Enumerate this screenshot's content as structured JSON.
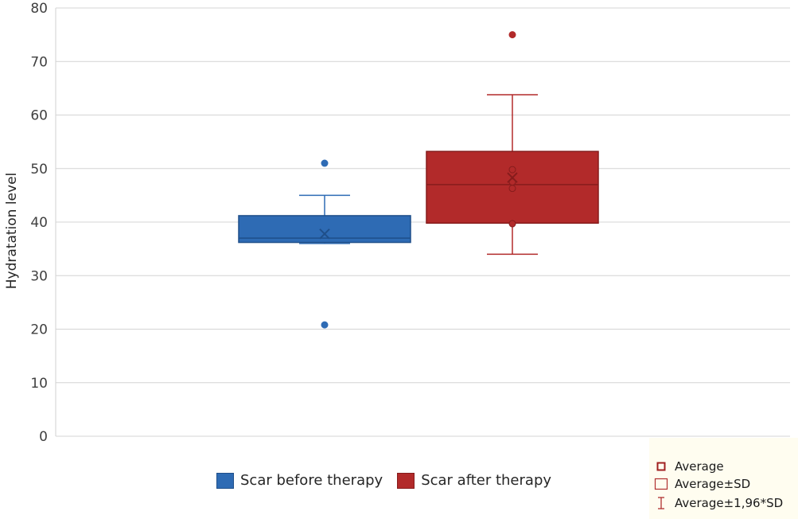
{
  "chart_data": {
    "type": "box",
    "ylabel": "Hydratation level",
    "xlabel": "",
    "ylim": [
      0,
      80
    ],
    "yticks": [
      0,
      10,
      20,
      30,
      40,
      50,
      60,
      70,
      80
    ],
    "grid": true,
    "legend_position": "bottom",
    "series": [
      {
        "name": "Scar before therapy",
        "color": "#2e6bb4",
        "whisker_low": 36,
        "q1": 36.2,
        "median": 37,
        "q3": 41.2,
        "whisker_high": 45,
        "mean": 37.8,
        "points": [],
        "outliers": [
          51,
          20.8
        ]
      },
      {
        "name": "Scar after therapy",
        "color": "#b22a2a",
        "whisker_low": 34,
        "q1": 39.8,
        "median": 47,
        "q3": 53.2,
        "whisker_high": 63.8,
        "mean": 48.3,
        "points": [
          39.7,
          46.3,
          47.5,
          49.8
        ],
        "outliers": [
          75
        ]
      }
    ]
  },
  "key": {
    "average": "Average",
    "average_sd": "Average±SD",
    "average_196sd": "Average±1,96*SD"
  }
}
